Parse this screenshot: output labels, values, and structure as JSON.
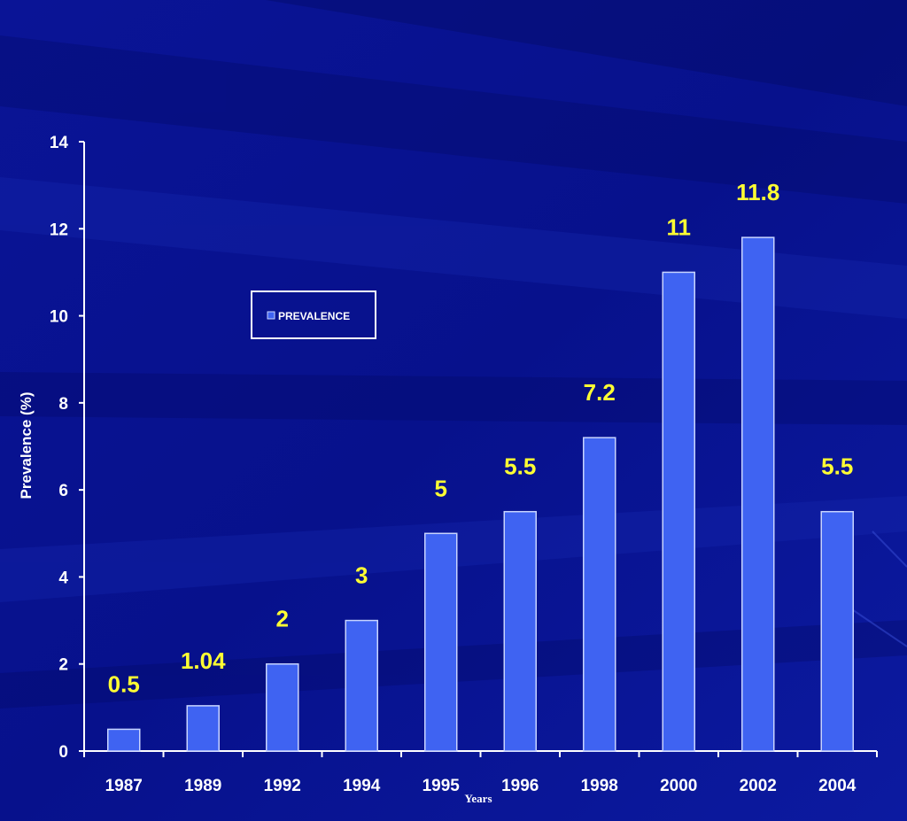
{
  "chart_data": {
    "type": "bar",
    "categories": [
      "1987",
      "1989",
      "1992",
      "1994",
      "1995",
      "1996",
      "1998",
      "2000",
      "2002",
      "2004"
    ],
    "series": [
      {
        "name": "PREVALENCE",
        "values": [
          0.5,
          1.04,
          2,
          3,
          5,
          5.5,
          7.2,
          11,
          11.8,
          5.5
        ]
      }
    ],
    "data_labels": [
      "0.5",
      "1.04",
      "2",
      "3",
      "5",
      "5.5",
      "7.2",
      "11",
      "11.8",
      "5.5"
    ],
    "y_ticks": [
      "0",
      "2",
      "4",
      "6",
      "8",
      "10",
      "12",
      "14"
    ],
    "ylim": [
      0,
      14
    ],
    "ylabel": "Prevalence (%)",
    "xlabel": "Years",
    "legend_position": "upper-left inside plot",
    "grid": false
  },
  "colors": {
    "background": "#06108a",
    "bar_fill": "#3f63f2",
    "bar_edge": "#c8d4ff",
    "data_label": "#ffff33",
    "axis": "#ffffff"
  }
}
